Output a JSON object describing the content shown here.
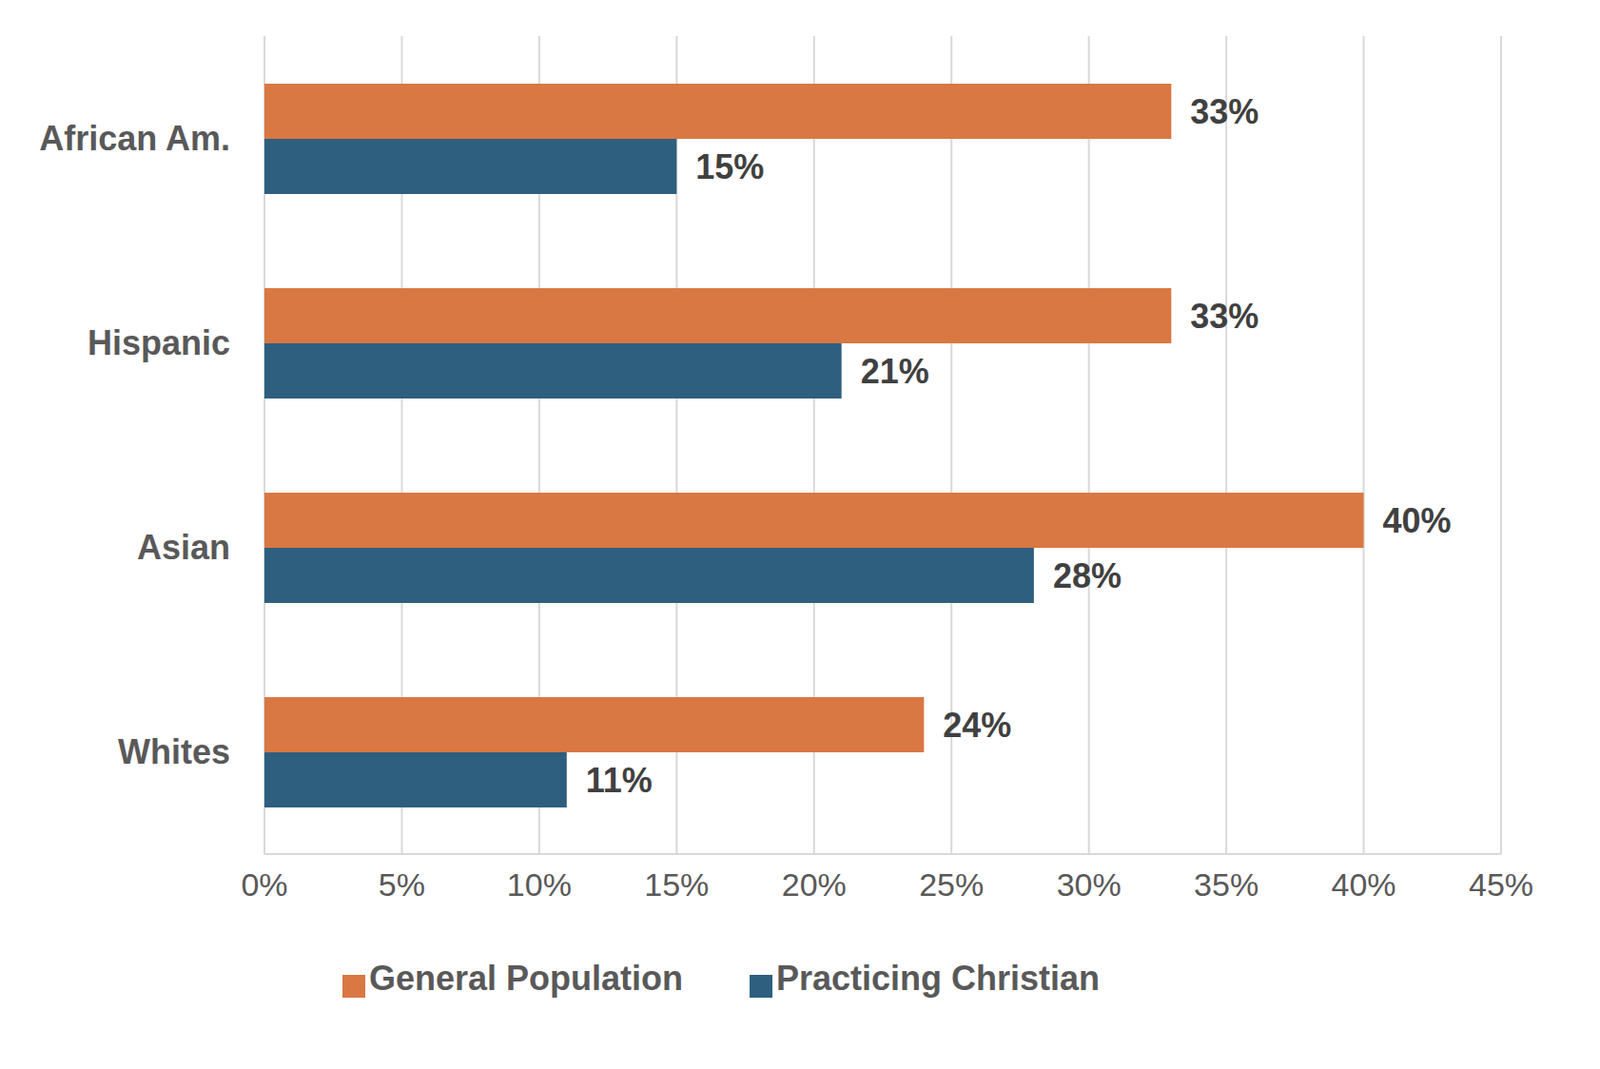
{
  "chart_data": {
    "type": "bar",
    "orientation": "horizontal",
    "categories": [
      "African Am.",
      "Hispanic",
      "Asian",
      "Whites"
    ],
    "series": [
      {
        "name": "General Population",
        "color": "#d97843",
        "values": [
          33,
          33,
          40,
          24
        ],
        "value_labels": [
          "33%",
          "33%",
          "40%",
          "24%"
        ]
      },
      {
        "name": "Practicing Christian",
        "color": "#2e5f7f",
        "values": [
          15,
          21,
          28,
          11
        ],
        "value_labels": [
          "15%",
          "21%",
          "28%",
          "11%"
        ]
      }
    ],
    "xlim": [
      0,
      45
    ],
    "xticks": [
      {
        "value": 0,
        "label": "0%"
      },
      {
        "value": 5,
        "label": "5%"
      },
      {
        "value": 10,
        "label": "10%"
      },
      {
        "value": 15,
        "label": "15%"
      },
      {
        "value": 20,
        "label": "20%"
      },
      {
        "value": 25,
        "label": "25%"
      },
      {
        "value": 30,
        "label": "30%"
      },
      {
        "value": 35,
        "label": "35%"
      },
      {
        "value": 40,
        "label": "40%"
      },
      {
        "value": 45,
        "label": "45%"
      }
    ],
    "grid": true,
    "legend": "bottom",
    "data_labels": true
  }
}
